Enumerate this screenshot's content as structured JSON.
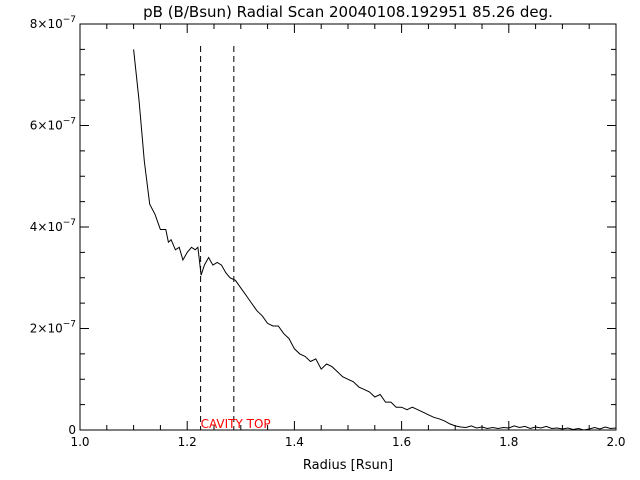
{
  "chart_data": {
    "type": "line",
    "title": "pB (B/Bsun) Radial Scan 20040108.192951 85.26 deg.",
    "xlabel": "Radius [Rsun]",
    "ylabel": "",
    "xlim": [
      1.0,
      2.0
    ],
    "ylim": [
      0,
      8e-07
    ],
    "x_ticks": [
      1.0,
      1.2,
      1.4,
      1.6,
      1.8,
      2.0
    ],
    "x_tick_labels": [
      "1.0",
      "1.2",
      "1.4",
      "1.6",
      "1.8",
      "2.0"
    ],
    "y_ticks": [
      0,
      2e-07,
      4e-07,
      6e-07,
      8e-07
    ],
    "y_tick_labels": [
      {
        "mant": "0",
        "exp": ""
      },
      {
        "mant": "2×10",
        "exp": "−7"
      },
      {
        "mant": "4×10",
        "exp": "−7"
      },
      {
        "mant": "6×10",
        "exp": "−7"
      },
      {
        "mant": "8×10",
        "exp": "−7"
      }
    ],
    "grid": false,
    "series": [
      {
        "points": [
          [
            1.1,
            7.5e-07
          ],
          [
            1.11,
            6.5e-07
          ],
          [
            1.12,
            5.3e-07
          ],
          [
            1.13,
            4.45e-07
          ],
          [
            1.14,
            4.25e-07
          ],
          [
            1.15,
            3.95e-07
          ],
          [
            1.16,
            3.95e-07
          ],
          [
            1.165,
            3.7e-07
          ],
          [
            1.17,
            3.75e-07
          ],
          [
            1.178,
            3.55e-07
          ],
          [
            1.185,
            3.6e-07
          ],
          [
            1.192,
            3.35e-07
          ],
          [
            1.2,
            3.5e-07
          ],
          [
            1.208,
            3.6e-07
          ],
          [
            1.215,
            3.55e-07
          ],
          [
            1.22,
            3.6e-07
          ],
          [
            1.226,
            3.05e-07
          ],
          [
            1.232,
            3.25e-07
          ],
          [
            1.24,
            3.4e-07
          ],
          [
            1.248,
            3.25e-07
          ],
          [
            1.256,
            3.3e-07
          ],
          [
            1.264,
            3.25e-07
          ],
          [
            1.272,
            3.1e-07
          ],
          [
            1.28,
            3e-07
          ],
          [
            1.29,
            2.95e-07
          ],
          [
            1.3,
            2.8e-07
          ],
          [
            1.31,
            2.65e-07
          ],
          [
            1.32,
            2.5e-07
          ],
          [
            1.33,
            2.35e-07
          ],
          [
            1.34,
            2.25e-07
          ],
          [
            1.35,
            2.1e-07
          ],
          [
            1.36,
            2.05e-07
          ],
          [
            1.37,
            2.05e-07
          ],
          [
            1.38,
            1.9e-07
          ],
          [
            1.39,
            1.8e-07
          ],
          [
            1.4,
            1.6e-07
          ],
          [
            1.41,
            1.5e-07
          ],
          [
            1.42,
            1.45e-07
          ],
          [
            1.43,
            1.35e-07
          ],
          [
            1.44,
            1.4e-07
          ],
          [
            1.45,
            1.2e-07
          ],
          [
            1.46,
            1.3e-07
          ],
          [
            1.47,
            1.25e-07
          ],
          [
            1.48,
            1.15e-07
          ],
          [
            1.49,
            1.05e-07
          ],
          [
            1.5,
            1e-07
          ],
          [
            1.51,
            9.5e-08
          ],
          [
            1.52,
            8.5e-08
          ],
          [
            1.53,
            8e-08
          ],
          [
            1.54,
            7.5e-08
          ],
          [
            1.55,
            6.5e-08
          ],
          [
            1.56,
            7e-08
          ],
          [
            1.57,
            5.5e-08
          ],
          [
            1.58,
            5.5e-08
          ],
          [
            1.59,
            4.5e-08
          ],
          [
            1.6,
            4.5e-08
          ],
          [
            1.61,
            4e-08
          ],
          [
            1.62,
            4.5e-08
          ],
          [
            1.63,
            4e-08
          ],
          [
            1.64,
            3.5e-08
          ],
          [
            1.65,
            3e-08
          ],
          [
            1.66,
            2.5e-08
          ],
          [
            1.67,
            2.2e-08
          ],
          [
            1.68,
            1.8e-08
          ],
          [
            1.69,
            1.2e-08
          ],
          [
            1.7,
            8e-09
          ],
          [
            1.71,
            6e-09
          ],
          [
            1.72,
            5e-09
          ],
          [
            1.73,
            8e-09
          ],
          [
            1.74,
            4e-09
          ],
          [
            1.75,
            6e-09
          ],
          [
            1.76,
            3e-09
          ],
          [
            1.77,
            5e-09
          ],
          [
            1.78,
            3e-09
          ],
          [
            1.79,
            5e-09
          ],
          [
            1.8,
            4e-09
          ],
          [
            1.81,
            8e-09
          ],
          [
            1.82,
            5e-09
          ],
          [
            1.83,
            7e-09
          ],
          [
            1.84,
            3e-09
          ],
          [
            1.85,
            6e-09
          ],
          [
            1.86,
            4e-09
          ],
          [
            1.87,
            7e-09
          ],
          [
            1.88,
            3e-09
          ],
          [
            1.89,
            4e-09
          ],
          [
            1.9,
            2e-09
          ],
          [
            1.91,
            4e-09
          ],
          [
            1.92,
            1e-09
          ],
          [
            1.93,
            3e-09
          ],
          [
            1.94,
            0.0
          ],
          [
            1.95,
            2e-09
          ],
          [
            1.96,
            5e-09
          ],
          [
            1.97,
            2e-09
          ],
          [
            1.98,
            6e-09
          ],
          [
            1.99,
            3e-09
          ],
          [
            2.0,
            4e-09
          ]
        ]
      }
    ],
    "markers": [
      {
        "x": 1.225
      },
      {
        "x": 1.287
      }
    ],
    "annotations": [
      {
        "text": "CAVITY TOP",
        "x": 1.225,
        "y": 0
      }
    ],
    "colors": {
      "axes": "#000000",
      "line": "#000000",
      "markers": "#000000",
      "annotation": "#ff0000"
    }
  }
}
